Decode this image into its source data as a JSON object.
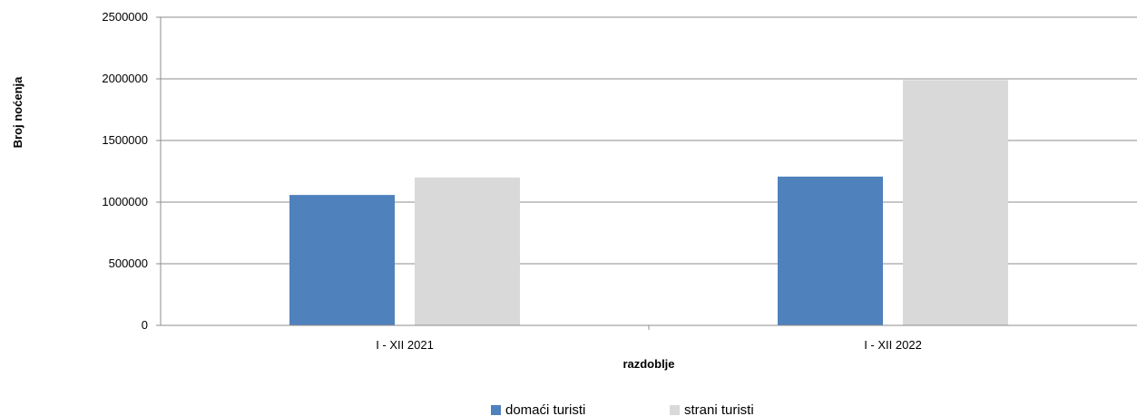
{
  "chart_data": {
    "type": "bar",
    "categories": [
      "I - XII 2021",
      "I - XII 2022"
    ],
    "series": [
      {
        "name": "domaći turisti",
        "color": "#4f81bd",
        "values": [
          1058000,
          1207000
        ]
      },
      {
        "name": "strani turisti",
        "color": "#d9d9d9",
        "values": [
          1200000,
          1990000
        ]
      }
    ],
    "xlabel": "razdoblje",
    "ylabel": "Broj noćenja",
    "ylim": [
      0,
      2500000
    ],
    "yticks": [
      "0",
      "500000",
      "1000000",
      "1500000",
      "2000000",
      "2500000"
    ],
    "grid": true,
    "legend_position": "bottom"
  }
}
